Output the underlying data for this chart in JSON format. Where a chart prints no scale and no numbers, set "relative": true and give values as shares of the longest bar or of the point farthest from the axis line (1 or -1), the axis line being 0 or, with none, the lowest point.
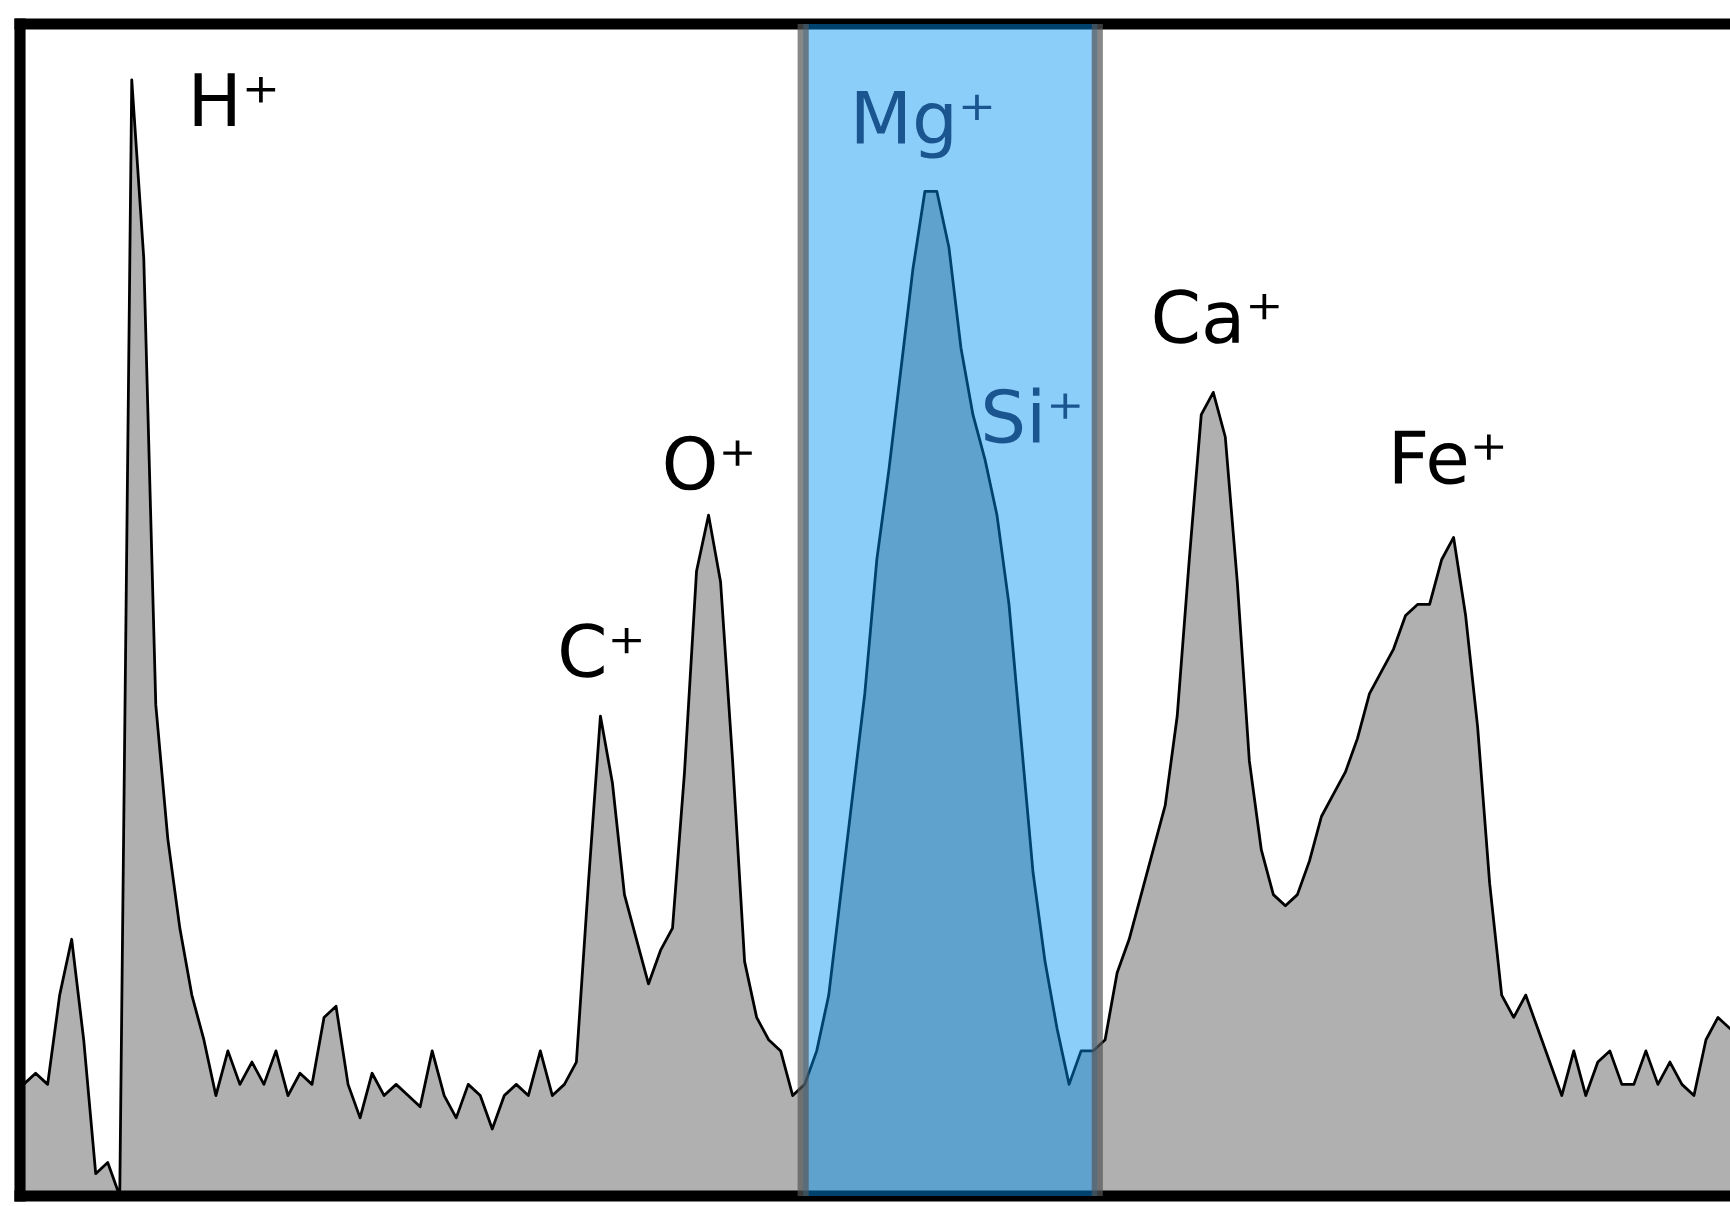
{
  "chart_data": {
    "type": "area",
    "relative": true,
    "categories": [
      null,
      null,
      null,
      null,
      null,
      null,
      null,
      null,
      null,
      null,
      null,
      null,
      null,
      null,
      null,
      null,
      null,
      null,
      null,
      null,
      null,
      null,
      null,
      null,
      null,
      null,
      null,
      null,
      null,
      null,
      null,
      null,
      null,
      null,
      null,
      null,
      null,
      null,
      null,
      null,
      null,
      null,
      null,
      null,
      null,
      null,
      null,
      null,
      null,
      null,
      null,
      null,
      null,
      null,
      null,
      null,
      null,
      null,
      null,
      null,
      null,
      null,
      null,
      null,
      null,
      null,
      null,
      null,
      null,
      null,
      null,
      null,
      null,
      null,
      null,
      null,
      null,
      null,
      null,
      null,
      null,
      null,
      null,
      null,
      null,
      null,
      null,
      null,
      null,
      null,
      null,
      null,
      null,
      null,
      null,
      null,
      null,
      null,
      null,
      null,
      null,
      null,
      null,
      null,
      null,
      null,
      null,
      null,
      null,
      null,
      null,
      null,
      null,
      null,
      null,
      null,
      null,
      null,
      null,
      null,
      null,
      null,
      null,
      null,
      null,
      null,
      null,
      null,
      null,
      null,
      null,
      null,
      null,
      null,
      null,
      null,
      null,
      null,
      null,
      null,
      null,
      null,
      null
    ],
    "series": [
      {
        "color": "#b0b0b0",
        "values": [
          0.1,
          0.11,
          0.1,
          0.18,
          0.23,
          0.14,
          0.02,
          0.03,
          0.0,
          1.0,
          0.84,
          0.44,
          0.32,
          0.24,
          0.18,
          0.14,
          0.09,
          0.13,
          0.1,
          0.12,
          0.1,
          0.13,
          0.09,
          0.11,
          0.1,
          0.16,
          0.17,
          0.1,
          0.07,
          0.11,
          0.09,
          0.1,
          0.09,
          0.08,
          0.13,
          0.09,
          0.07,
          0.1,
          0.09,
          0.06,
          0.09,
          0.1,
          0.09,
          0.13,
          0.09,
          0.1,
          0.12,
          0.28,
          0.43,
          0.37,
          0.27,
          0.23,
          0.19,
          0.22,
          0.24,
          0.38,
          0.56,
          0.61,
          0.55,
          0.39,
          0.21,
          0.16,
          0.14,
          0.13,
          0.09,
          0.1,
          0.13,
          0.18,
          0.27,
          0.36,
          0.45,
          0.57,
          0.65,
          0.74,
          0.83,
          0.9,
          0.9,
          0.85,
          0.76,
          0.7,
          0.66,
          0.61,
          0.53,
          0.41,
          0.29,
          0.21,
          0.15,
          0.1,
          0.13,
          0.13,
          0.14,
          0.2,
          0.23,
          0.27,
          0.31,
          0.35,
          0.43,
          0.57,
          0.7,
          0.72,
          0.68,
          0.55,
          0.39,
          0.31,
          0.27,
          0.26,
          0.27,
          0.3,
          0.34,
          0.36,
          0.38,
          0.41,
          0.45,
          0.47,
          0.49,
          0.52,
          0.53,
          0.53,
          0.57,
          0.59,
          0.52,
          0.42,
          0.28,
          0.18,
          0.16,
          0.18,
          0.15,
          0.12,
          0.09,
          0.13,
          0.09,
          0.12,
          0.13,
          0.1,
          0.1,
          0.13,
          0.1,
          0.12,
          0.1,
          0.09,
          0.14,
          0.16,
          0.15
        ]
      }
    ],
    "annotations": [
      "H⁺",
      "C⁺",
      "O⁺",
      "Mg⁺",
      "Si⁺",
      "Ca⁺",
      "Fe⁺"
    ]
  }
}
